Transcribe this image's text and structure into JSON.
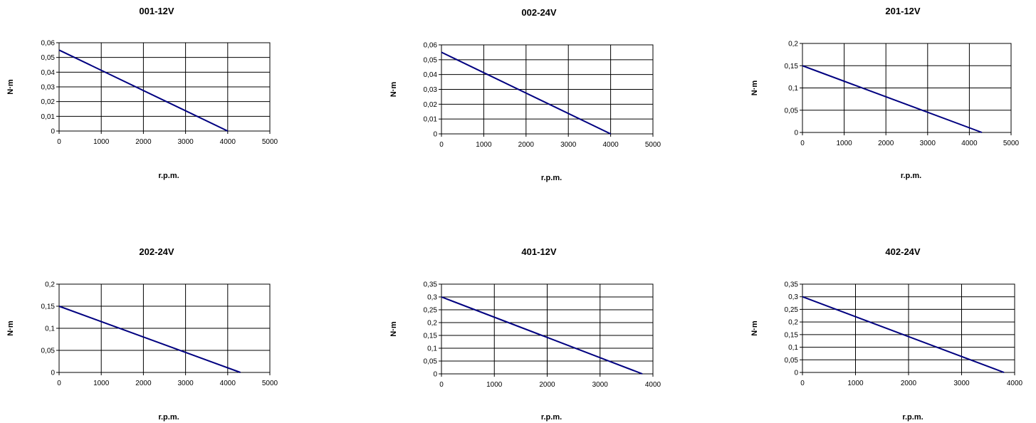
{
  "colors": {
    "line": "#000080",
    "axis": "#000000",
    "grid": "#000000",
    "background": "#ffffff"
  },
  "chart_data": [
    {
      "type": "line",
      "title": "001-12V",
      "xlabel": "r.p.m.",
      "ylabel": "N·m",
      "grid": true,
      "xlim": [
        0,
        5000
      ],
      "ylim": [
        0,
        0.06
      ],
      "x_ticks": [
        "0",
        "1000",
        "2000",
        "3000",
        "4000",
        "5000"
      ],
      "y_ticks": [
        "0",
        "0,01",
        "0,02",
        "0,03",
        "0,04",
        "0,05",
        "0,06"
      ],
      "series": [
        {
          "x": [
            0,
            4000
          ],
          "y": [
            0.055,
            0
          ]
        }
      ]
    },
    {
      "type": "line",
      "title": "002-24V",
      "xlabel": "r.p.m.",
      "ylabel": "N·m",
      "grid": true,
      "xlim": [
        0,
        5000
      ],
      "ylim": [
        0,
        0.06
      ],
      "x_ticks": [
        "0",
        "1000",
        "2000",
        "3000",
        "4000",
        "5000"
      ],
      "y_ticks": [
        "0",
        "0,01",
        "0,02",
        "0,03",
        "0,04",
        "0,05",
        "0,06"
      ],
      "series": [
        {
          "x": [
            0,
            4000
          ],
          "y": [
            0.055,
            0
          ]
        }
      ]
    },
    {
      "type": "line",
      "title": "201-12V",
      "xlabel": "r.p.m.",
      "ylabel": "N·m",
      "grid": true,
      "xlim": [
        0,
        5000
      ],
      "ylim": [
        0,
        0.2
      ],
      "x_ticks": [
        "0",
        "1000",
        "2000",
        "3000",
        "4000",
        "5000"
      ],
      "y_ticks": [
        "0",
        "0,05",
        "0,1",
        "0,15",
        "0,2"
      ],
      "series": [
        {
          "x": [
            0,
            4300
          ],
          "y": [
            0.15,
            0
          ]
        }
      ]
    },
    {
      "type": "line",
      "title": "202-24V",
      "xlabel": "r.p.m.",
      "ylabel": "N·m",
      "grid": true,
      "xlim": [
        0,
        5000
      ],
      "ylim": [
        0,
        0.2
      ],
      "x_ticks": [
        "0",
        "1000",
        "2000",
        "3000",
        "4000",
        "5000"
      ],
      "y_ticks": [
        "0",
        "0,05",
        "0,1",
        "0,15",
        "0,2"
      ],
      "series": [
        {
          "x": [
            0,
            4300
          ],
          "y": [
            0.15,
            0
          ]
        }
      ]
    },
    {
      "type": "line",
      "title": "401-12V",
      "xlabel": "r.p.m.",
      "ylabel": "N·m",
      "grid": true,
      "xlim": [
        0,
        4000
      ],
      "ylim": [
        0,
        0.35
      ],
      "x_ticks": [
        "0",
        "1000",
        "2000",
        "3000",
        "4000"
      ],
      "y_ticks": [
        "0",
        "0,05",
        "0,1",
        "0,15",
        "0,2",
        "0,25",
        "0,3",
        "0,35"
      ],
      "series": [
        {
          "x": [
            0,
            3800
          ],
          "y": [
            0.3,
            0
          ]
        }
      ]
    },
    {
      "type": "line",
      "title": "402-24V",
      "xlabel": "r.p.m.",
      "ylabel": "N·m",
      "grid": true,
      "xlim": [
        0,
        4000
      ],
      "ylim": [
        0,
        0.35
      ],
      "x_ticks": [
        "0",
        "1000",
        "2000",
        "3000",
        "4000"
      ],
      "y_ticks": [
        "0",
        "0,05",
        "0,1",
        "0,15",
        "0,2",
        "0,25",
        "0,3",
        "0,35"
      ],
      "series": [
        {
          "x": [
            0,
            3800
          ],
          "y": [
            0.3,
            0
          ]
        }
      ]
    }
  ]
}
